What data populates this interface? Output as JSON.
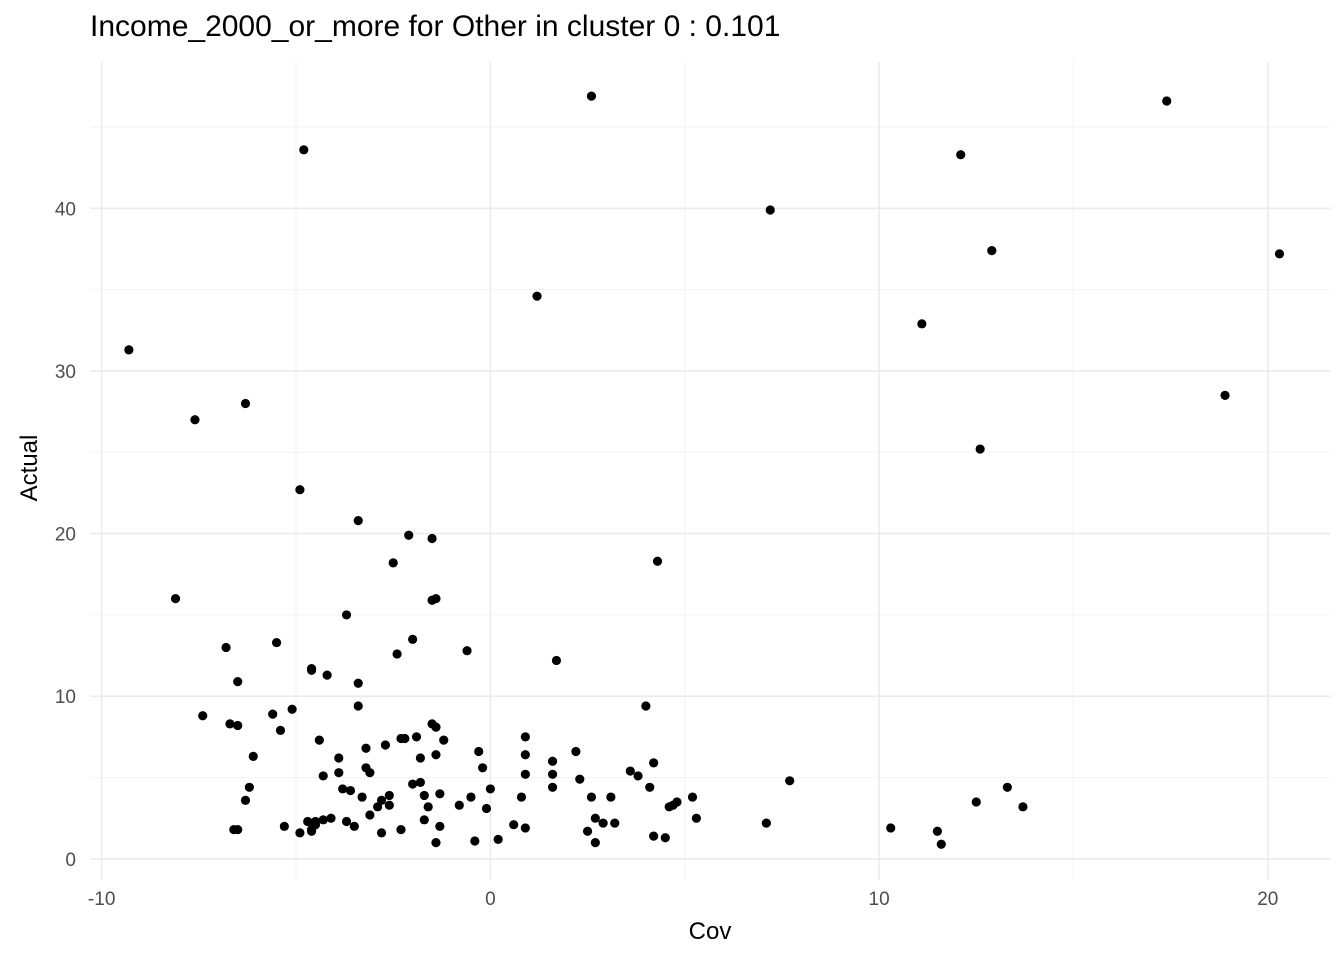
{
  "chart_data": {
    "type": "scatter",
    "title": "Income_2000_or_more for Other in cluster 0 : 0.101",
    "xlabel": "Cov",
    "ylabel": "Actual",
    "xlim": [
      -10.3,
      21.6
    ],
    "ylim": [
      -1.3,
      49.0
    ],
    "x_ticks": [
      -10,
      0,
      10,
      20
    ],
    "x_tick_labels": [
      "-10",
      "0",
      "10",
      "20"
    ],
    "y_ticks": [
      0,
      10,
      20,
      30,
      40
    ],
    "y_tick_labels": [
      "0",
      "10",
      "20",
      "30",
      "40"
    ],
    "grid": true,
    "point_color": "#000000",
    "points": [
      [
        -9.3,
        31.3
      ],
      [
        -8.1,
        16.0
      ],
      [
        -7.6,
        27.0
      ],
      [
        -7.4,
        8.8
      ],
      [
        -6.8,
        13.0
      ],
      [
        -6.7,
        8.3
      ],
      [
        -6.6,
        1.8
      ],
      [
        -6.5,
        8.2
      ],
      [
        -6.5,
        10.9
      ],
      [
        -6.5,
        1.8
      ],
      [
        -6.3,
        3.6
      ],
      [
        -6.3,
        28.0
      ],
      [
        -6.2,
        4.4
      ],
      [
        -6.1,
        6.3
      ],
      [
        -5.6,
        8.9
      ],
      [
        -5.5,
        13.3
      ],
      [
        -5.4,
        7.9
      ],
      [
        -5.3,
        2.0
      ],
      [
        -5.1,
        9.2
      ],
      [
        -4.9,
        22.7
      ],
      [
        -4.9,
        1.6
      ],
      [
        -4.8,
        43.6
      ],
      [
        -4.7,
        2.3
      ],
      [
        -4.6,
        11.7
      ],
      [
        -4.6,
        11.6
      ],
      [
        -4.5,
        2.3
      ],
      [
        -4.5,
        2.1
      ],
      [
        -4.6,
        1.8
      ],
      [
        -4.6,
        1.7
      ],
      [
        -4.4,
        7.3
      ],
      [
        -4.3,
        5.1
      ],
      [
        -4.3,
        2.4
      ],
      [
        -4.2,
        11.3
      ],
      [
        -4.1,
        2.5
      ],
      [
        -3.9,
        6.2
      ],
      [
        -3.9,
        5.3
      ],
      [
        -3.8,
        4.3
      ],
      [
        -3.7,
        2.3
      ],
      [
        -3.7,
        15.0
      ],
      [
        -3.6,
        4.2
      ],
      [
        -3.5,
        2.0
      ],
      [
        -3.4,
        20.8
      ],
      [
        -3.4,
        10.8
      ],
      [
        -3.4,
        9.4
      ],
      [
        -3.3,
        3.8
      ],
      [
        -3.2,
        6.8
      ],
      [
        -3.2,
        5.6
      ],
      [
        -3.1,
        2.7
      ],
      [
        -3.1,
        5.3
      ],
      [
        -2.9,
        3.2
      ],
      [
        -2.8,
        3.6
      ],
      [
        -2.8,
        1.6
      ],
      [
        -2.7,
        7.0
      ],
      [
        -2.6,
        3.9
      ],
      [
        -2.6,
        3.3
      ],
      [
        -2.5,
        18.2
      ],
      [
        -2.4,
        12.6
      ],
      [
        -2.3,
        7.4
      ],
      [
        -2.3,
        1.8
      ],
      [
        -2.2,
        7.4
      ],
      [
        -2.1,
        19.9
      ],
      [
        -2.0,
        13.5
      ],
      [
        -2.0,
        4.6
      ],
      [
        -1.9,
        7.5
      ],
      [
        -1.8,
        6.2
      ],
      [
        -1.8,
        4.7
      ],
      [
        -1.7,
        3.9
      ],
      [
        -1.7,
        2.4
      ],
      [
        -1.6,
        3.2
      ],
      [
        -1.5,
        8.3
      ],
      [
        -1.5,
        19.7
      ],
      [
        -1.5,
        15.9
      ],
      [
        -1.4,
        16.0
      ],
      [
        -1.4,
        6.4
      ],
      [
        -1.4,
        8.1
      ],
      [
        -1.4,
        1.0
      ],
      [
        -1.3,
        4.0
      ],
      [
        -1.3,
        2.0
      ],
      [
        -1.2,
        7.3
      ],
      [
        -0.8,
        3.3
      ],
      [
        -0.6,
        12.8
      ],
      [
        -0.5,
        3.8
      ],
      [
        -0.4,
        1.1
      ],
      [
        -0.3,
        6.6
      ],
      [
        -0.2,
        5.6
      ],
      [
        -0.1,
        3.1
      ],
      [
        0.0,
        4.3
      ],
      [
        0.2,
        1.2
      ],
      [
        0.6,
        2.1
      ],
      [
        0.8,
        3.8
      ],
      [
        0.9,
        7.5
      ],
      [
        0.9,
        6.4
      ],
      [
        0.9,
        5.2
      ],
      [
        0.9,
        1.9
      ],
      [
        1.2,
        34.6
      ],
      [
        1.6,
        6.0
      ],
      [
        1.6,
        5.2
      ],
      [
        1.6,
        4.4
      ],
      [
        1.7,
        12.2
      ],
      [
        2.2,
        6.6
      ],
      [
        2.3,
        4.9
      ],
      [
        2.5,
        1.7
      ],
      [
        2.6,
        3.8
      ],
      [
        2.6,
        46.9
      ],
      [
        2.7,
        2.5
      ],
      [
        2.7,
        1.0
      ],
      [
        2.9,
        2.2
      ],
      [
        3.1,
        3.8
      ],
      [
        3.2,
        2.2
      ],
      [
        3.6,
        5.4
      ],
      [
        3.8,
        5.1
      ],
      [
        4.0,
        9.4
      ],
      [
        4.1,
        4.4
      ],
      [
        4.2,
        1.4
      ],
      [
        4.2,
        5.9
      ],
      [
        4.3,
        18.3
      ],
      [
        4.5,
        1.3
      ],
      [
        4.6,
        3.2
      ],
      [
        4.7,
        3.3
      ],
      [
        4.8,
        3.5
      ],
      [
        5.2,
        3.8
      ],
      [
        5.3,
        2.5
      ],
      [
        7.1,
        2.2
      ],
      [
        7.2,
        39.9
      ],
      [
        7.7,
        4.8
      ],
      [
        10.3,
        1.9
      ],
      [
        11.1,
        32.9
      ],
      [
        11.5,
        1.7
      ],
      [
        11.6,
        0.9
      ],
      [
        12.1,
        43.3
      ],
      [
        12.5,
        3.5
      ],
      [
        12.6,
        25.2
      ],
      [
        12.9,
        37.4
      ],
      [
        13.3,
        4.4
      ],
      [
        13.7,
        3.2
      ],
      [
        17.4,
        46.6
      ],
      [
        18.9,
        28.5
      ],
      [
        20.3,
        37.2
      ]
    ]
  }
}
